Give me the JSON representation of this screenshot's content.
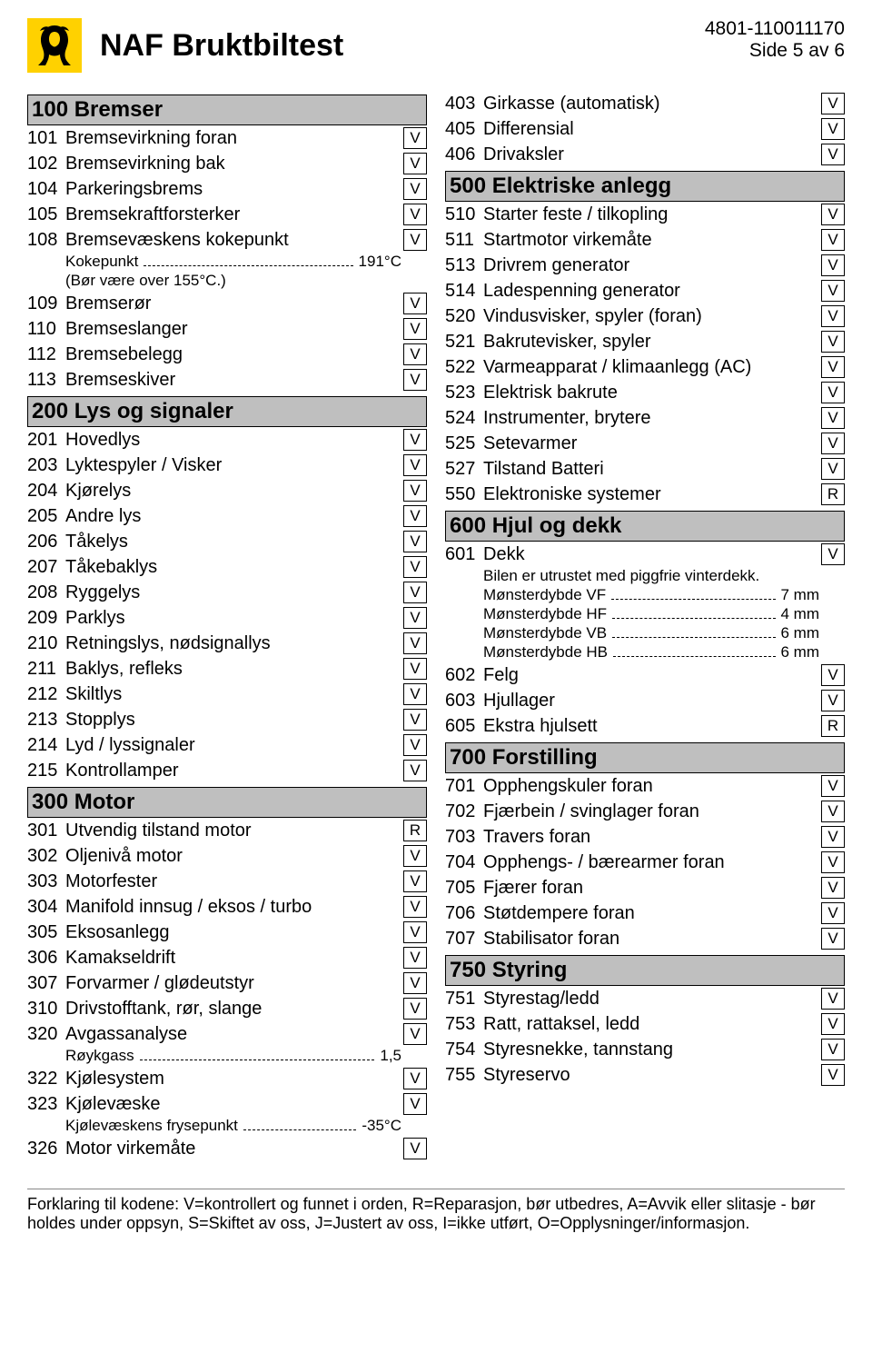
{
  "doc_id": "4801-110011170",
  "page_indicator": "Side 5 av 6",
  "title": "NAF Bruktbiltest",
  "footer_text": "Forklaring til kodene: V=kontrollert og funnet i orden, R=Reparasjon, bør utbedres, A=Avvik eller slitasje - bør holdes under oppsyn, S=Skiftet av oss, J=Justert av oss, I=ikke utført, O=Opplysninger/informasjon.",
  "logo_colors": {
    "bg": "#ffd100",
    "lion": "#000000"
  },
  "colors": {
    "section_bg": "#bfbfbf",
    "border": "#000000",
    "text": "#000000",
    "page_bg": "#ffffff"
  },
  "left": [
    {
      "type": "section",
      "code": "100",
      "title": "Bremser"
    },
    {
      "type": "item",
      "code": "101",
      "label": "Bremsevirkning foran",
      "badge": "V"
    },
    {
      "type": "item",
      "code": "102",
      "label": "Bremsevirkning bak",
      "badge": "V"
    },
    {
      "type": "item",
      "code": "104",
      "label": "Parkeringsbrems",
      "badge": "V"
    },
    {
      "type": "item",
      "code": "105",
      "label": "Bremsekraftforsterker",
      "badge": "V"
    },
    {
      "type": "item",
      "code": "108",
      "label": "Bremsevæskens kokepunkt",
      "badge": "V"
    },
    {
      "type": "sub",
      "label": "Kokepunkt",
      "value": "191°C"
    },
    {
      "type": "subplain",
      "label": "(Bør være over 155°C.)"
    },
    {
      "type": "item",
      "code": "109",
      "label": "Bremserør",
      "badge": "V"
    },
    {
      "type": "item",
      "code": "110",
      "label": "Bremseslanger",
      "badge": "V"
    },
    {
      "type": "item",
      "code": "112",
      "label": "Bremsebelegg",
      "badge": "V"
    },
    {
      "type": "item",
      "code": "113",
      "label": "Bremseskiver",
      "badge": "V"
    },
    {
      "type": "section",
      "code": "200",
      "title": "Lys og signaler"
    },
    {
      "type": "item",
      "code": "201",
      "label": "Hovedlys",
      "badge": "V"
    },
    {
      "type": "item",
      "code": "203",
      "label": "Lyktespyler / Visker",
      "badge": "V"
    },
    {
      "type": "item",
      "code": "204",
      "label": "Kjørelys",
      "badge": "V"
    },
    {
      "type": "item",
      "code": "205",
      "label": "Andre lys",
      "badge": "V"
    },
    {
      "type": "item",
      "code": "206",
      "label": "Tåkelys",
      "badge": "V"
    },
    {
      "type": "item",
      "code": "207",
      "label": "Tåkebaklys",
      "badge": "V"
    },
    {
      "type": "item",
      "code": "208",
      "label": "Ryggelys",
      "badge": "V"
    },
    {
      "type": "item",
      "code": "209",
      "label": "Parklys",
      "badge": "V"
    },
    {
      "type": "item",
      "code": "210",
      "label": "Retningslys,  nødsignallys",
      "badge": "V"
    },
    {
      "type": "item",
      "code": "211",
      "label": "Baklys, refleks",
      "badge": "V"
    },
    {
      "type": "item",
      "code": "212",
      "label": "Skiltlys",
      "badge": "V"
    },
    {
      "type": "item",
      "code": "213",
      "label": "Stopplys",
      "badge": "V"
    },
    {
      "type": "item",
      "code": "214",
      "label": "Lyd / lyssignaler",
      "badge": "V"
    },
    {
      "type": "item",
      "code": "215",
      "label": "Kontrollamper",
      "badge": "V"
    },
    {
      "type": "section",
      "code": "300",
      "title": "Motor"
    },
    {
      "type": "item",
      "code": "301",
      "label": "Utvendig tilstand motor",
      "badge": "R"
    },
    {
      "type": "item",
      "code": "302",
      "label": "Oljenivå motor",
      "badge": "V"
    },
    {
      "type": "item",
      "code": "303",
      "label": "Motorfester",
      "badge": "V"
    },
    {
      "type": "item",
      "code": "304",
      "label": "Manifold innsug / eksos / turbo",
      "badge": "V"
    },
    {
      "type": "item",
      "code": "305",
      "label": "Eksosanlegg",
      "badge": "V"
    },
    {
      "type": "item",
      "code": "306",
      "label": "Kamakseldrift",
      "badge": "V"
    },
    {
      "type": "item",
      "code": "307",
      "label": "Forvarmer / glødeutstyr",
      "badge": "V"
    },
    {
      "type": "item",
      "code": "310",
      "label": "Drivstofftank, rør, slange",
      "badge": "V"
    },
    {
      "type": "item",
      "code": "320",
      "label": "Avgassanalyse",
      "badge": "V"
    },
    {
      "type": "sub",
      "label": "Røykgass",
      "value": "1,5"
    },
    {
      "type": "item",
      "code": "322",
      "label": "Kjølesystem",
      "badge": "V"
    },
    {
      "type": "item",
      "code": "323",
      "label": "Kjølevæske",
      "badge": "V"
    },
    {
      "type": "sub",
      "label": "Kjølevæskens frysepunkt",
      "value": "-35°C"
    },
    {
      "type": "item",
      "code": "326",
      "label": "Motor virkemåte",
      "badge": "V"
    }
  ],
  "right": [
    {
      "type": "item",
      "code": "403",
      "label": "Girkasse (automatisk)",
      "badge": "V"
    },
    {
      "type": "item",
      "code": "405",
      "label": "Differensial",
      "badge": "V"
    },
    {
      "type": "item",
      "code": "406",
      "label": "Drivaksler",
      "badge": "V"
    },
    {
      "type": "section",
      "code": "500",
      "title": "Elektriske anlegg"
    },
    {
      "type": "item",
      "code": "510",
      "label": "Starter feste / tilkopling",
      "badge": "V"
    },
    {
      "type": "item",
      "code": "511",
      "label": "Startmotor virkemåte",
      "badge": "V"
    },
    {
      "type": "item",
      "code": "513",
      "label": "Drivrem generator",
      "badge": "V"
    },
    {
      "type": "item",
      "code": "514",
      "label": "Ladespenning generator",
      "badge": "V"
    },
    {
      "type": "item",
      "code": "520",
      "label": "Vindusvisker, spyler (foran)",
      "badge": "V"
    },
    {
      "type": "item",
      "code": "521",
      "label": "Bakrutevisker, spyler",
      "badge": "V"
    },
    {
      "type": "item",
      "code": "522",
      "label": "Varmeapparat / klimaanlegg (AC)",
      "badge": "V"
    },
    {
      "type": "item",
      "code": "523",
      "label": "Elektrisk bakrute",
      "badge": "V"
    },
    {
      "type": "item",
      "code": "524",
      "label": "Instrumenter, brytere",
      "badge": "V"
    },
    {
      "type": "item",
      "code": "525",
      "label": "Setevarmer",
      "badge": "V"
    },
    {
      "type": "item",
      "code": "527",
      "label": "Tilstand Batteri",
      "badge": "V"
    },
    {
      "type": "item",
      "code": "550",
      "label": "Elektroniske systemer",
      "badge": "R"
    },
    {
      "type": "section",
      "code": "600",
      "title": "Hjul og dekk"
    },
    {
      "type": "item",
      "code": "601",
      "label": "Dekk",
      "badge": "V"
    },
    {
      "type": "subplain",
      "label": "Bilen er utrustet med piggfrie vinterdekk."
    },
    {
      "type": "sub",
      "label": "Mønsterdybde VF",
      "value": "7 mm"
    },
    {
      "type": "sub",
      "label": "Mønsterdybde HF",
      "value": "4 mm"
    },
    {
      "type": "sub",
      "label": "Mønsterdybde VB",
      "value": "6 mm"
    },
    {
      "type": "sub",
      "label": "Mønsterdybde HB",
      "value": "6 mm"
    },
    {
      "type": "item",
      "code": "602",
      "label": "Felg",
      "badge": "V"
    },
    {
      "type": "item",
      "code": "603",
      "label": "Hjullager",
      "badge": "V"
    },
    {
      "type": "item",
      "code": "605",
      "label": "Ekstra hjulsett",
      "badge": "R"
    },
    {
      "type": "section",
      "code": "700",
      "title": "Forstilling"
    },
    {
      "type": "item",
      "code": "701",
      "label": "Opphengskuler foran",
      "badge": "V"
    },
    {
      "type": "item",
      "code": "702",
      "label": "Fjærbein / svinglager foran",
      "badge": "V"
    },
    {
      "type": "item",
      "code": "703",
      "label": "Travers foran",
      "badge": "V"
    },
    {
      "type": "item",
      "code": "704",
      "label": "Opphengs- / bærearmer foran",
      "badge": "V"
    },
    {
      "type": "item",
      "code": "705",
      "label": "Fjærer foran",
      "badge": "V"
    },
    {
      "type": "item",
      "code": "706",
      "label": "Støtdempere foran",
      "badge": "V"
    },
    {
      "type": "item",
      "code": "707",
      "label": "Stabilisator foran",
      "badge": "V"
    },
    {
      "type": "section",
      "code": "750",
      "title": "Styring"
    },
    {
      "type": "item",
      "code": "751",
      "label": "Styrestag/ledd",
      "badge": "V"
    },
    {
      "type": "item",
      "code": "753",
      "label": "Ratt, rattaksel, ledd",
      "badge": "V"
    },
    {
      "type": "item",
      "code": "754",
      "label": "Styresnekke, tannstang",
      "badge": "V"
    },
    {
      "type": "item",
      "code": "755",
      "label": "Styreservo",
      "badge": "V"
    }
  ]
}
